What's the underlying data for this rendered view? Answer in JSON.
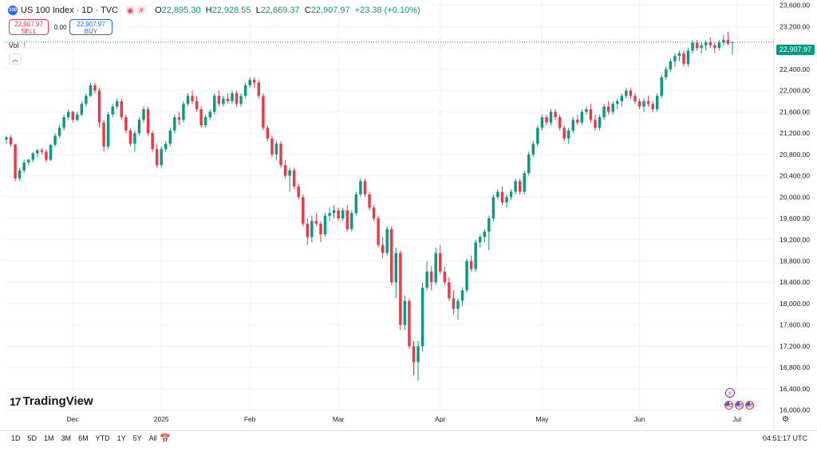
{
  "legend": {
    "symbol_logo": "100",
    "title": "US 100 Index · 1D · TVC",
    "o_label": "O",
    "o_value": "22,895.30",
    "h_label": "H",
    "h_value": "22,928.55",
    "l_label": "L",
    "l_value": "22,669.37",
    "c_label": "C",
    "c_value": "22,907.97",
    "change": "+23.38 (+0.10%)"
  },
  "trade": {
    "sell_price": "22,907.97",
    "sell_label": "SELL",
    "spread": "0.00",
    "buy_price": "22,907.97",
    "buy_label": "BUY"
  },
  "volume": {
    "label": "Vol",
    "warning_icon": "!"
  },
  "collapse_icon": "chevron-up",
  "brand": {
    "name": "TradingView",
    "mark": "17"
  },
  "last_price": "22,907.97",
  "chart_data": {
    "type": "candlestick",
    "title": "US 100 Index · 1D · TVC",
    "ylim": [
      15950,
      23700
    ],
    "y_ticks": [
      "23,600.00",
      "23,200.00",
      "22,800.00",
      "22,400.00",
      "22,000.00",
      "21,600.00",
      "21,200.00",
      "20,800.00",
      "20,400.00",
      "20,000.00",
      "19,600.00",
      "19,200.00",
      "18,800.00",
      "18,400.00",
      "18,000.00",
      "17,600.00",
      "17,200.00",
      "16,800.00",
      "16,400.00",
      "16,000.00"
    ],
    "y_tick_values": [
      23600,
      23200,
      22800,
      22400,
      22000,
      21600,
      21200,
      20800,
      20400,
      20000,
      19600,
      19200,
      18800,
      18400,
      18000,
      17600,
      17200,
      16800,
      16400,
      16000
    ],
    "x_labels": [
      "Dec",
      "2025",
      "Feb",
      "Mar",
      "Apr",
      "May",
      "Jun",
      "Jul"
    ],
    "x_label_index": [
      15,
      35,
      55,
      75,
      98,
      121,
      143,
      165
    ],
    "colors": {
      "up": "#089981",
      "down": "#f23645",
      "grid": "#f0f3fa",
      "axis_text": "#131722",
      "last_line": "#089981"
    },
    "last_value": 22907.97,
    "candles": [
      [
        21080,
        21150,
        21000,
        21120
      ],
      [
        21120,
        21160,
        20950,
        20990
      ],
      [
        20990,
        21000,
        20300,
        20350
      ],
      [
        20350,
        20550,
        20300,
        20500
      ],
      [
        20500,
        20700,
        20450,
        20650
      ],
      [
        20650,
        20720,
        20600,
        20700
      ],
      [
        20700,
        20850,
        20650,
        20820
      ],
      [
        20820,
        20900,
        20750,
        20880
      ],
      [
        20880,
        20920,
        20800,
        20850
      ],
      [
        20850,
        20900,
        20650,
        20700
      ],
      [
        20700,
        21000,
        20680,
        20980
      ],
      [
        20980,
        21200,
        20950,
        21150
      ],
      [
        21150,
        21350,
        21100,
        21300
      ],
      [
        21300,
        21550,
        21250,
        21500
      ],
      [
        21500,
        21650,
        21450,
        21600
      ],
      [
        21600,
        21620,
        21400,
        21450
      ],
      [
        21450,
        21600,
        21420,
        21550
      ],
      [
        21550,
        21800,
        21520,
        21750
      ],
      [
        21750,
        21950,
        21700,
        21900
      ],
      [
        21900,
        22150,
        21880,
        22100
      ],
      [
        22100,
        22150,
        21950,
        22000
      ],
      [
        22000,
        22050,
        21300,
        21400
      ],
      [
        21400,
        21450,
        20850,
        20950
      ],
      [
        20950,
        21600,
        20900,
        21550
      ],
      [
        21550,
        21750,
        21500,
        21700
      ],
      [
        21700,
        21850,
        21650,
        21800
      ],
      [
        21800,
        21850,
        21450,
        21500
      ],
      [
        21500,
        21550,
        21200,
        21250
      ],
      [
        21250,
        21300,
        20950,
        21000
      ],
      [
        21000,
        21250,
        20850,
        21200
      ],
      [
        21200,
        21500,
        21150,
        21450
      ],
      [
        21450,
        21700,
        21400,
        21650
      ],
      [
        21650,
        21700,
        21150,
        21200
      ],
      [
        21200,
        21250,
        20850,
        20900
      ],
      [
        20900,
        21000,
        20550,
        20600
      ],
      [
        20600,
        20950,
        20550,
        20900
      ],
      [
        20900,
        21050,
        20850,
        21000
      ],
      [
        21000,
        21300,
        20950,
        21250
      ],
      [
        21250,
        21550,
        21200,
        21500
      ],
      [
        21500,
        21600,
        21350,
        21450
      ],
      [
        21450,
        21800,
        21400,
        21750
      ],
      [
        21750,
        21950,
        21700,
        21900
      ],
      [
        21900,
        22000,
        21750,
        21800
      ],
      [
        21800,
        21900,
        21600,
        21650
      ],
      [
        21650,
        21700,
        21300,
        21350
      ],
      [
        21350,
        21550,
        21300,
        21500
      ],
      [
        21500,
        21650,
        21450,
        21600
      ],
      [
        21600,
        21950,
        21550,
        21900
      ],
      [
        21900,
        22000,
        21700,
        21750
      ],
      [
        21750,
        21900,
        21700,
        21850
      ],
      [
        21850,
        21950,
        21750,
        21800
      ],
      [
        21800,
        22000,
        21750,
        21950
      ],
      [
        21950,
        22000,
        21700,
        21750
      ],
      [
        21750,
        21950,
        21700,
        21900
      ],
      [
        21900,
        22150,
        21850,
        22100
      ],
      [
        22100,
        22250,
        22050,
        22200
      ],
      [
        22200,
        22250,
        22050,
        22150
      ],
      [
        22150,
        22200,
        21850,
        21900
      ],
      [
        21900,
        21950,
        21250,
        21300
      ],
      [
        21300,
        21350,
        21050,
        21100
      ],
      [
        21100,
        21150,
        20750,
        20800
      ],
      [
        20800,
        21050,
        20700,
        21000
      ],
      [
        21000,
        21050,
        20550,
        20600
      ],
      [
        20600,
        20700,
        20350,
        20400
      ],
      [
        20400,
        20550,
        20100,
        20500
      ],
      [
        20500,
        20550,
        20150,
        20200
      ],
      [
        20200,
        20250,
        19950,
        20000
      ],
      [
        20000,
        20050,
        19450,
        19500
      ],
      [
        19500,
        19600,
        19100,
        19250
      ],
      [
        19250,
        19650,
        19150,
        19550
      ],
      [
        19550,
        19700,
        19450,
        19500
      ],
      [
        19500,
        19550,
        19150,
        19300
      ],
      [
        19300,
        19700,
        19250,
        19650
      ],
      [
        19650,
        19800,
        19550,
        19700
      ],
      [
        19700,
        19850,
        19600,
        19750
      ],
      [
        19750,
        19800,
        19550,
        19600
      ],
      [
        19600,
        19800,
        19550,
        19750
      ],
      [
        19750,
        19850,
        19350,
        19400
      ],
      [
        19400,
        19750,
        19350,
        19700
      ],
      [
        19700,
        20100,
        19650,
        20050
      ],
      [
        20050,
        20350,
        20000,
        20300
      ],
      [
        20300,
        20350,
        20000,
        20050
      ],
      [
        20050,
        20100,
        19750,
        19800
      ],
      [
        19800,
        19850,
        19550,
        19600
      ],
      [
        19600,
        19650,
        19050,
        19100
      ],
      [
        19100,
        19250,
        18850,
        18950
      ],
      [
        18950,
        19450,
        18900,
        19400
      ],
      [
        19400,
        19450,
        18350,
        18400
      ],
      [
        18400,
        19050,
        18100,
        18950
      ],
      [
        18950,
        19000,
        17500,
        17600
      ],
      [
        17600,
        18150,
        17500,
        18050
      ],
      [
        18050,
        18100,
        17150,
        17200
      ],
      [
        17200,
        17300,
        16650,
        16900
      ],
      [
        16900,
        17300,
        16550,
        17200
      ],
      [
        17200,
        18400,
        17100,
        18300
      ],
      [
        18300,
        18800,
        18250,
        18600
      ],
      [
        18600,
        18700,
        18250,
        18400
      ],
      [
        18400,
        19050,
        18350,
        18950
      ],
      [
        18950,
        19100,
        18550,
        18600
      ],
      [
        18600,
        18700,
        18350,
        18400
      ],
      [
        18400,
        18500,
        18050,
        18100
      ],
      [
        18100,
        18250,
        17800,
        17900
      ],
      [
        17900,
        18100,
        17700,
        18050
      ],
      [
        18050,
        18300,
        17950,
        18250
      ],
      [
        18250,
        18850,
        18200,
        18800
      ],
      [
        18800,
        18900,
        18600,
        18650
      ],
      [
        18650,
        19200,
        18600,
        19150
      ],
      [
        19150,
        19300,
        19050,
        19250
      ],
      [
        19250,
        19400,
        19150,
        19350
      ],
      [
        19350,
        19650,
        19000,
        19600
      ],
      [
        19600,
        20050,
        19550,
        20000
      ],
      [
        20000,
        20150,
        19950,
        20100
      ],
      [
        20100,
        20200,
        19850,
        19900
      ],
      [
        19900,
        20050,
        19800,
        20000
      ],
      [
        20000,
        20150,
        19950,
        20100
      ],
      [
        20100,
        20350,
        20050,
        20300
      ],
      [
        20300,
        20350,
        20050,
        20100
      ],
      [
        20100,
        20500,
        20050,
        20450
      ],
      [
        20450,
        20850,
        20400,
        20800
      ],
      [
        20800,
        21050,
        20750,
        21000
      ],
      [
        21000,
        21350,
        20950,
        21300
      ],
      [
        21300,
        21550,
        21250,
        21500
      ],
      [
        21500,
        21550,
        21350,
        21400
      ],
      [
        21400,
        21650,
        21350,
        21600
      ],
      [
        21600,
        21650,
        21450,
        21500
      ],
      [
        21500,
        21550,
        21250,
        21300
      ],
      [
        21300,
        21350,
        21050,
        21100
      ],
      [
        21100,
        21300,
        21000,
        21250
      ],
      [
        21250,
        21500,
        21200,
        21450
      ],
      [
        21450,
        21550,
        21350,
        21400
      ],
      [
        21400,
        21650,
        21350,
        21600
      ],
      [
        21600,
        21700,
        21550,
        21650
      ],
      [
        21650,
        21750,
        21400,
        21450
      ],
      [
        21450,
        21550,
        21250,
        21300
      ],
      [
        21300,
        21550,
        21250,
        21500
      ],
      [
        21500,
        21750,
        21450,
        21700
      ],
      [
        21700,
        21800,
        21550,
        21600
      ],
      [
        21600,
        21800,
        21550,
        21750
      ],
      [
        21750,
        21850,
        21650,
        21800
      ],
      [
        21800,
        21950,
        21700,
        21900
      ],
      [
        21900,
        22050,
        21850,
        22000
      ],
      [
        22000,
        22050,
        21850,
        21900
      ],
      [
        21900,
        21950,
        21750,
        21800
      ],
      [
        21800,
        21850,
        21650,
        21700
      ],
      [
        21700,
        21850,
        21600,
        21800
      ],
      [
        21800,
        21900,
        21700,
        21750
      ],
      [
        21750,
        21800,
        21600,
        21650
      ],
      [
        21650,
        21950,
        21600,
        21900
      ],
      [
        21900,
        22300,
        21850,
        22250
      ],
      [
        22250,
        22450,
        22200,
        22400
      ],
      [
        22400,
        22600,
        22350,
        22550
      ],
      [
        22550,
        22700,
        22450,
        22650
      ],
      [
        22650,
        22750,
        22550,
        22700
      ],
      [
        22700,
        22750,
        22450,
        22500
      ],
      [
        22500,
        22800,
        22450,
        22750
      ],
      [
        22750,
        22950,
        22700,
        22900
      ],
      [
        22900,
        22950,
        22750,
        22800
      ],
      [
        22800,
        22900,
        22700,
        22850
      ],
      [
        22850,
        22950,
        22750,
        22900
      ],
      [
        22900,
        23000,
        22800,
        22850
      ],
      [
        22850,
        22900,
        22700,
        22800
      ],
      [
        22800,
        22950,
        22750,
        22900
      ],
      [
        22900,
        23050,
        22850,
        22950
      ],
      [
        22950,
        23100,
        22850,
        22880
      ],
      [
        22895.3,
        22928.55,
        22669.37,
        22907.97
      ]
    ]
  },
  "time_ranges": [
    "1D",
    "5D",
    "1M",
    "3M",
    "6M",
    "YTD",
    "1Y",
    "5Y",
    "All"
  ],
  "calendar_icon": "calendar",
  "clock": "04:51:17 UTC",
  "axis_settings_icon": "gear"
}
